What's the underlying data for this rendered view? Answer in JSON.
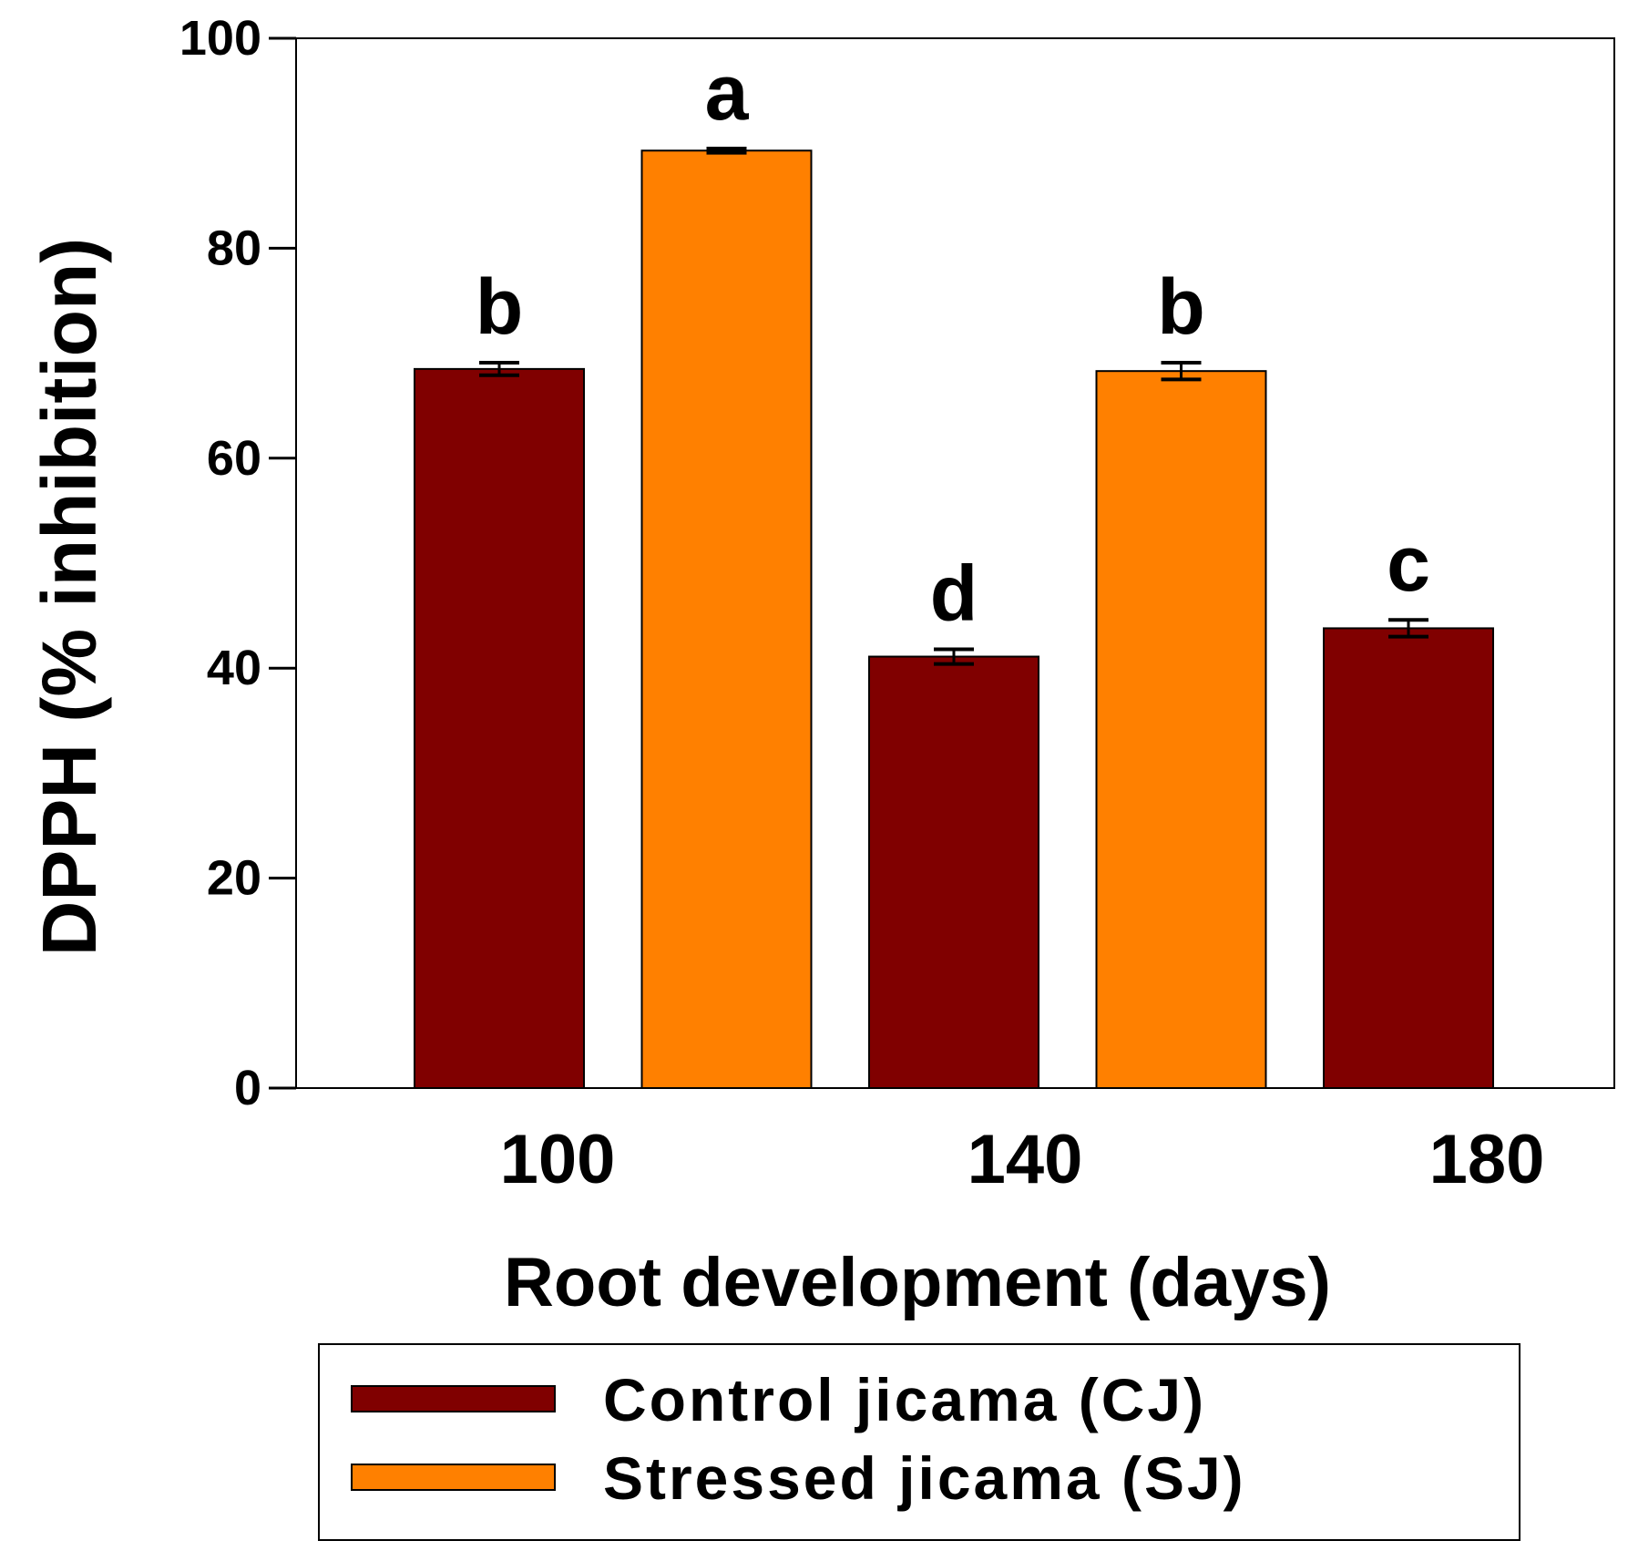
{
  "chart_data": {
    "type": "bar",
    "title": "",
    "xlabel": "Root development (days)",
    "ylabel": "DPPH (% inhibition)",
    "ylim": [
      0,
      100
    ],
    "yticks": [
      "0",
      "20",
      "40",
      "60",
      "80",
      "100"
    ],
    "categories": [
      "100",
      "140",
      "180"
    ],
    "bars": [
      {
        "category": "100",
        "series": "Control jicama (CJ)",
        "value": 68.5,
        "error": 0.6,
        "label": "b"
      },
      {
        "category": "100",
        "series": "Stressed jicama (SJ)",
        "value": 89.3,
        "error": 0.2,
        "label": "a"
      },
      {
        "category": "140",
        "series": "Control jicama (CJ)",
        "value": 41.1,
        "error": 0.7,
        "label": "d"
      },
      {
        "category": "140",
        "series": "Stressed jicama (SJ)",
        "value": 68.3,
        "error": 0.8,
        "label": "b"
      },
      {
        "category": "180",
        "series": "Control jicama (CJ)",
        "value": 43.8,
        "error": 0.8,
        "label": "c"
      }
    ],
    "series": [
      {
        "name": "Control jicama (CJ)",
        "color": "#800000"
      },
      {
        "name": "Stressed jicama (SJ)",
        "color": "#ff8000"
      }
    ],
    "grid": false,
    "legend_position": "bottom"
  }
}
